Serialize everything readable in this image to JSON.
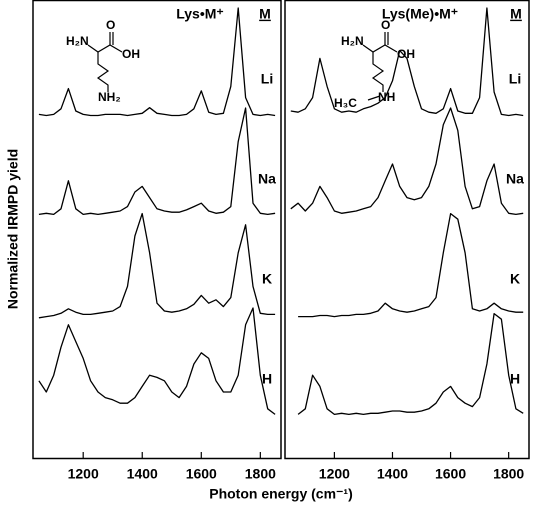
{
  "chart_data": [
    {
      "type": "line",
      "title": "Lys•M⁺",
      "legend_header": "M",
      "xlabel": "Photon energy (cm⁻¹)",
      "ylabel": "Normalized IRMPD yield",
      "structure_labels": [
        "H₂N",
        "O",
        "OH",
        "NH₂"
      ],
      "x": [
        1050,
        1075,
        1100,
        1125,
        1150,
        1175,
        1200,
        1225,
        1250,
        1275,
        1300,
        1325,
        1350,
        1375,
        1400,
        1425,
        1450,
        1475,
        1500,
        1525,
        1550,
        1575,
        1600,
        1625,
        1650,
        1675,
        1700,
        1725,
        1750,
        1775,
        1800,
        1825,
        1850
      ],
      "xlim": [
        1030,
        1870
      ],
      "xticks": [
        1200,
        1400,
        1600,
        1800
      ],
      "ylim": [
        0,
        1
      ],
      "series": [
        {
          "name": "Li",
          "color": "#000000",
          "values": [
            0.05,
            0.04,
            0.05,
            0.1,
            0.28,
            0.08,
            0.05,
            0.04,
            0.04,
            0.05,
            0.05,
            0.05,
            0.04,
            0.05,
            0.06,
            0.11,
            0.06,
            0.05,
            0.04,
            0.04,
            0.05,
            0.1,
            0.26,
            0.07,
            0.05,
            0.06,
            0.3,
            1.0,
            0.2,
            0.05,
            0.04,
            0.05,
            0.04
          ]
        },
        {
          "name": "Na",
          "color": "#000000",
          "values": [
            0.05,
            0.06,
            0.05,
            0.1,
            0.35,
            0.1,
            0.05,
            0.06,
            0.05,
            0.06,
            0.07,
            0.08,
            0.12,
            0.25,
            0.3,
            0.2,
            0.1,
            0.08,
            0.07,
            0.07,
            0.09,
            0.12,
            0.15,
            0.08,
            0.06,
            0.07,
            0.12,
            0.7,
            1.0,
            0.15,
            0.06,
            0.05,
            0.06
          ]
        },
        {
          "name": "K",
          "color": "#000000",
          "values": [
            0.02,
            0.03,
            0.04,
            0.06,
            0.1,
            0.07,
            0.05,
            0.05,
            0.06,
            0.07,
            0.08,
            0.12,
            0.3,
            0.75,
            0.95,
            0.6,
            0.15,
            0.08,
            0.07,
            0.08,
            0.1,
            0.14,
            0.22,
            0.15,
            0.18,
            0.12,
            0.2,
            0.6,
            0.85,
            0.3,
            0.06,
            0.05,
            0.05
          ]
        },
        {
          "name": "H",
          "color": "#000000",
          "values": [
            0.35,
            0.25,
            0.4,
            0.65,
            0.85,
            0.7,
            0.55,
            0.35,
            0.25,
            0.2,
            0.18,
            0.15,
            0.15,
            0.2,
            0.3,
            0.4,
            0.38,
            0.35,
            0.25,
            0.2,
            0.3,
            0.5,
            0.6,
            0.55,
            0.35,
            0.25,
            0.25,
            0.4,
            0.85,
            1.0,
            0.4,
            0.1,
            0.05
          ]
        }
      ]
    },
    {
      "type": "line",
      "title": "Lys(Me)•M⁺",
      "legend_header": "M",
      "structure_labels": [
        "H₂N",
        "O",
        "OH",
        "H₃C",
        "NH"
      ],
      "x": [
        1050,
        1075,
        1100,
        1125,
        1150,
        1175,
        1200,
        1225,
        1250,
        1275,
        1300,
        1325,
        1350,
        1375,
        1400,
        1425,
        1450,
        1475,
        1500,
        1525,
        1550,
        1575,
        1600,
        1625,
        1650,
        1675,
        1700,
        1725,
        1750,
        1775,
        1800,
        1825,
        1850
      ],
      "xlim": [
        1030,
        1870
      ],
      "xticks": [
        1200,
        1400,
        1600,
        1800
      ],
      "ylim": [
        0,
        1
      ],
      "series": [
        {
          "name": "Li",
          "color": "#000000",
          "values": [
            0.08,
            0.07,
            0.1,
            0.2,
            0.55,
            0.3,
            0.1,
            0.07,
            0.08,
            0.07,
            0.1,
            0.12,
            0.15,
            0.2,
            0.35,
            0.62,
            0.55,
            0.3,
            0.1,
            0.07,
            0.06,
            0.1,
            0.28,
            0.08,
            0.06,
            0.06,
            0.2,
            1.0,
            0.25,
            0.05,
            0.04,
            0.05,
            0.04
          ]
        },
        {
          "name": "Na",
          "color": "#000000",
          "values": [
            0.1,
            0.15,
            0.08,
            0.15,
            0.3,
            0.2,
            0.08,
            0.06,
            0.07,
            0.08,
            0.1,
            0.12,
            0.2,
            0.35,
            0.5,
            0.3,
            0.2,
            0.18,
            0.2,
            0.3,
            0.5,
            0.85,
            1.0,
            0.8,
            0.3,
            0.1,
            0.12,
            0.35,
            0.5,
            0.15,
            0.06,
            0.05,
            0.06
          ]
        },
        {
          "name": "K",
          "color": "#000000",
          "values": [
            null,
            0.03,
            0.03,
            0.03,
            0.04,
            0.04,
            0.03,
            0.04,
            0.04,
            0.05,
            0.05,
            0.06,
            0.08,
            0.15,
            0.1,
            0.08,
            0.07,
            0.08,
            0.1,
            0.12,
            0.2,
            0.6,
            0.95,
            0.9,
            0.6,
            0.1,
            0.08,
            0.1,
            0.15,
            0.1,
            0.08,
            0.07,
            0.07
          ]
        },
        {
          "name": "H",
          "color": "#000000",
          "values": [
            null,
            0.05,
            0.1,
            0.4,
            0.3,
            0.1,
            0.05,
            0.06,
            0.05,
            0.06,
            0.05,
            0.06,
            0.06,
            0.07,
            0.08,
            0.08,
            0.07,
            0.07,
            0.08,
            0.1,
            0.15,
            0.25,
            0.3,
            0.2,
            0.15,
            0.12,
            0.2,
            0.5,
            0.95,
            0.9,
            0.4,
            0.1,
            0.06
          ]
        }
      ]
    }
  ]
}
